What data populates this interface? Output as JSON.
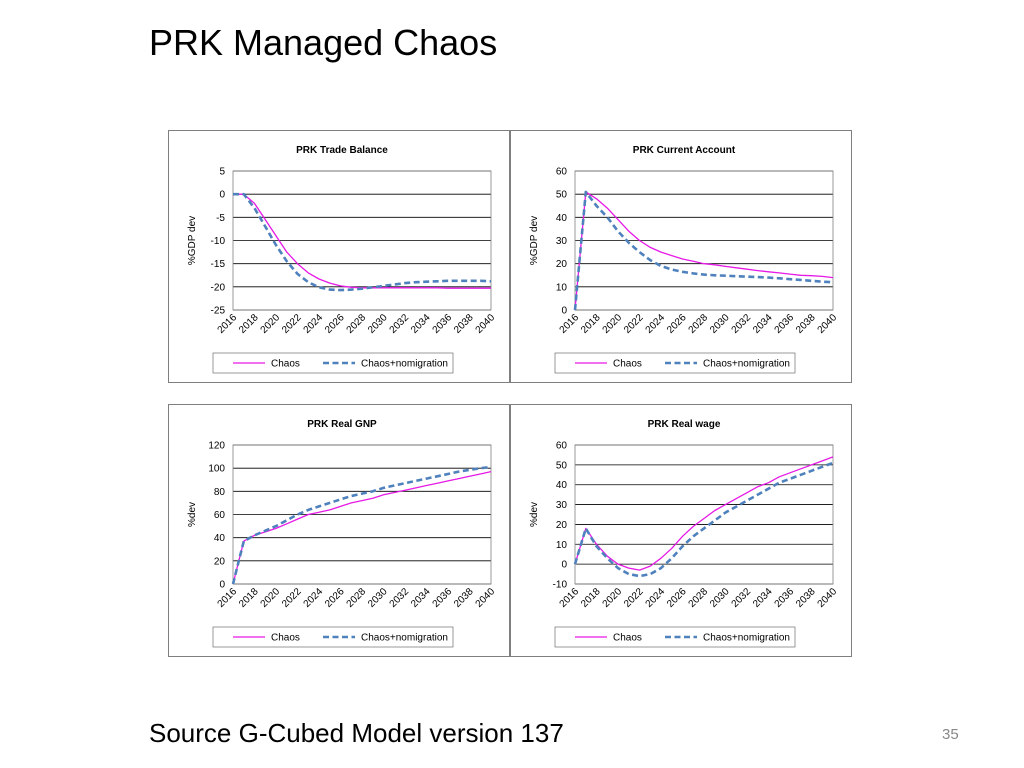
{
  "slide": {
    "title": "PRK Managed Chaos",
    "source": "Source G-Cubed Model version 137",
    "page_number": "35"
  },
  "colors": {
    "chaos": "#e619e6",
    "chaos_nomigration": "#4f81bd",
    "grid": "#000000",
    "frame": "#7f7f7f"
  },
  "chart_data": [
    {
      "type": "line",
      "title": "PRK Trade Balance",
      "ylabel": "%GDP dev",
      "xlabel": "",
      "ylim": [
        -25,
        5
      ],
      "yticks": [
        5,
        0,
        -5,
        -10,
        -15,
        -20,
        -25
      ],
      "x": [
        2016,
        2017,
        2018,
        2019,
        2020,
        2021,
        2022,
        2023,
        2024,
        2025,
        2026,
        2027,
        2028,
        2029,
        2030,
        2031,
        2032,
        2033,
        2034,
        2035,
        2036,
        2037,
        2038,
        2039,
        2040
      ],
      "xtick_labels": [
        "2016",
        "2018",
        "2020",
        "2022",
        "2024",
        "2026",
        "2028",
        "2030",
        "2032",
        "2034",
        "2036",
        "2038",
        "2040"
      ],
      "legend": "bottom",
      "grid": true,
      "series": [
        {
          "name": "Chaos",
          "style": "solid",
          "values": [
            0,
            0,
            -2,
            -5.5,
            -9,
            -12.5,
            -15,
            -17,
            -18.3,
            -19.2,
            -19.8,
            -20.1,
            -20.2,
            -20.2,
            -20.2,
            -20.2,
            -20.2,
            -20.2,
            -20.2,
            -20.2,
            -20.3,
            -20.3,
            -20.3,
            -20.3,
            -20.3
          ]
        },
        {
          "name": "Chaos+nomigration",
          "style": "dashed",
          "values": [
            0,
            0,
            -3,
            -7,
            -11,
            -14.5,
            -17.2,
            -19,
            -20.1,
            -20.6,
            -20.7,
            -20.6,
            -20.4,
            -20.1,
            -19.8,
            -19.5,
            -19.2,
            -19,
            -18.9,
            -18.8,
            -18.7,
            -18.7,
            -18.7,
            -18.7,
            -18.8
          ]
        }
      ]
    },
    {
      "type": "line",
      "title": "PRK Current Account",
      "ylabel": "%GDP dev",
      "xlabel": "",
      "ylim": [
        0,
        60
      ],
      "yticks": [
        60,
        50,
        40,
        30,
        20,
        10,
        0
      ],
      "x": [
        2016,
        2017,
        2018,
        2019,
        2020,
        2021,
        2022,
        2023,
        2024,
        2025,
        2026,
        2027,
        2028,
        2029,
        2030,
        2031,
        2032,
        2033,
        2034,
        2035,
        2036,
        2037,
        2038,
        2039,
        2040
      ],
      "xtick_labels": [
        "2016",
        "2018",
        "2020",
        "2022",
        "2024",
        "2026",
        "2028",
        "2030",
        "2032",
        "2034",
        "2036",
        "2038",
        "2040"
      ],
      "legend": "bottom",
      "grid": true,
      "series": [
        {
          "name": "Chaos",
          "style": "solid",
          "values": [
            0,
            51,
            48,
            44,
            39,
            34,
            30,
            27,
            25,
            23.5,
            22,
            21,
            20,
            19.5,
            18.8,
            18.2,
            17.6,
            17,
            16.5,
            16,
            15.5,
            15,
            14.8,
            14.5,
            14
          ]
        },
        {
          "name": "Chaos+nomigration",
          "style": "dashed",
          "values": [
            0,
            51,
            45,
            40,
            34,
            29,
            25,
            21.5,
            19,
            17.5,
            16.5,
            15.8,
            15.3,
            15,
            14.8,
            14.6,
            14.4,
            14.2,
            14,
            13.7,
            13.3,
            13,
            12.6,
            12.2,
            12
          ]
        }
      ]
    },
    {
      "type": "line",
      "title": "PRK Real GNP",
      "ylabel": "%dev",
      "xlabel": "",
      "ylim": [
        0,
        120
      ],
      "yticks": [
        120,
        100,
        80,
        60,
        40,
        20,
        0
      ],
      "x": [
        2016,
        2017,
        2018,
        2019,
        2020,
        2021,
        2022,
        2023,
        2024,
        2025,
        2026,
        2027,
        2028,
        2029,
        2030,
        2031,
        2032,
        2033,
        2034,
        2035,
        2036,
        2037,
        2038,
        2039,
        2040
      ],
      "xtick_labels": [
        "2016",
        "2018",
        "2020",
        "2022",
        "2024",
        "2026",
        "2028",
        "2030",
        "2032",
        "2034",
        "2036",
        "2038",
        "2040"
      ],
      "legend": "bottom",
      "grid": true,
      "series": [
        {
          "name": "Chaos",
          "style": "solid",
          "values": [
            0,
            37,
            42,
            45,
            48,
            52,
            56,
            60,
            62,
            64,
            67,
            70,
            72,
            74,
            77,
            79,
            81,
            83,
            85,
            87,
            89,
            91,
            93,
            95,
            97
          ]
        },
        {
          "name": "Chaos+nomigration",
          "style": "dashed",
          "values": [
            0,
            37,
            42,
            46,
            50,
            55,
            60,
            64,
            67,
            70,
            73,
            76,
            78,
            80,
            83,
            85,
            87,
            89,
            91,
            93,
            95,
            97,
            98.5,
            100,
            101
          ]
        }
      ]
    },
    {
      "type": "line",
      "title": "PRK Real wage",
      "ylabel": "%dev",
      "xlabel": "",
      "ylim": [
        -10,
        60
      ],
      "yticks": [
        60,
        50,
        40,
        30,
        20,
        10,
        0,
        -10
      ],
      "x": [
        2016,
        2017,
        2018,
        2019,
        2020,
        2021,
        2022,
        2023,
        2024,
        2025,
        2026,
        2027,
        2028,
        2029,
        2030,
        2031,
        2032,
        2033,
        2034,
        2035,
        2036,
        2037,
        2038,
        2039,
        2040
      ],
      "xtick_labels": [
        "2016",
        "2018",
        "2020",
        "2022",
        "2024",
        "2026",
        "2028",
        "2030",
        "2032",
        "2034",
        "2036",
        "2038",
        "2040"
      ],
      "legend": "bottom",
      "grid": true,
      "series": [
        {
          "name": "Chaos",
          "style": "solid",
          "values": [
            0,
            18,
            10,
            4,
            0,
            -2,
            -3,
            -1,
            3,
            8,
            14,
            19,
            23,
            27,
            30,
            33,
            36,
            39,
            41,
            44,
            46,
            48,
            50,
            52,
            54
          ]
        },
        {
          "name": "Chaos+nomigration",
          "style": "dashed",
          "values": [
            0,
            18,
            9,
            3,
            -2,
            -5,
            -6,
            -5,
            -2,
            3,
            9,
            14,
            18,
            22,
            26,
            29,
            32,
            35,
            38,
            41,
            43,
            45,
            47,
            49,
            51
          ]
        }
      ]
    }
  ]
}
